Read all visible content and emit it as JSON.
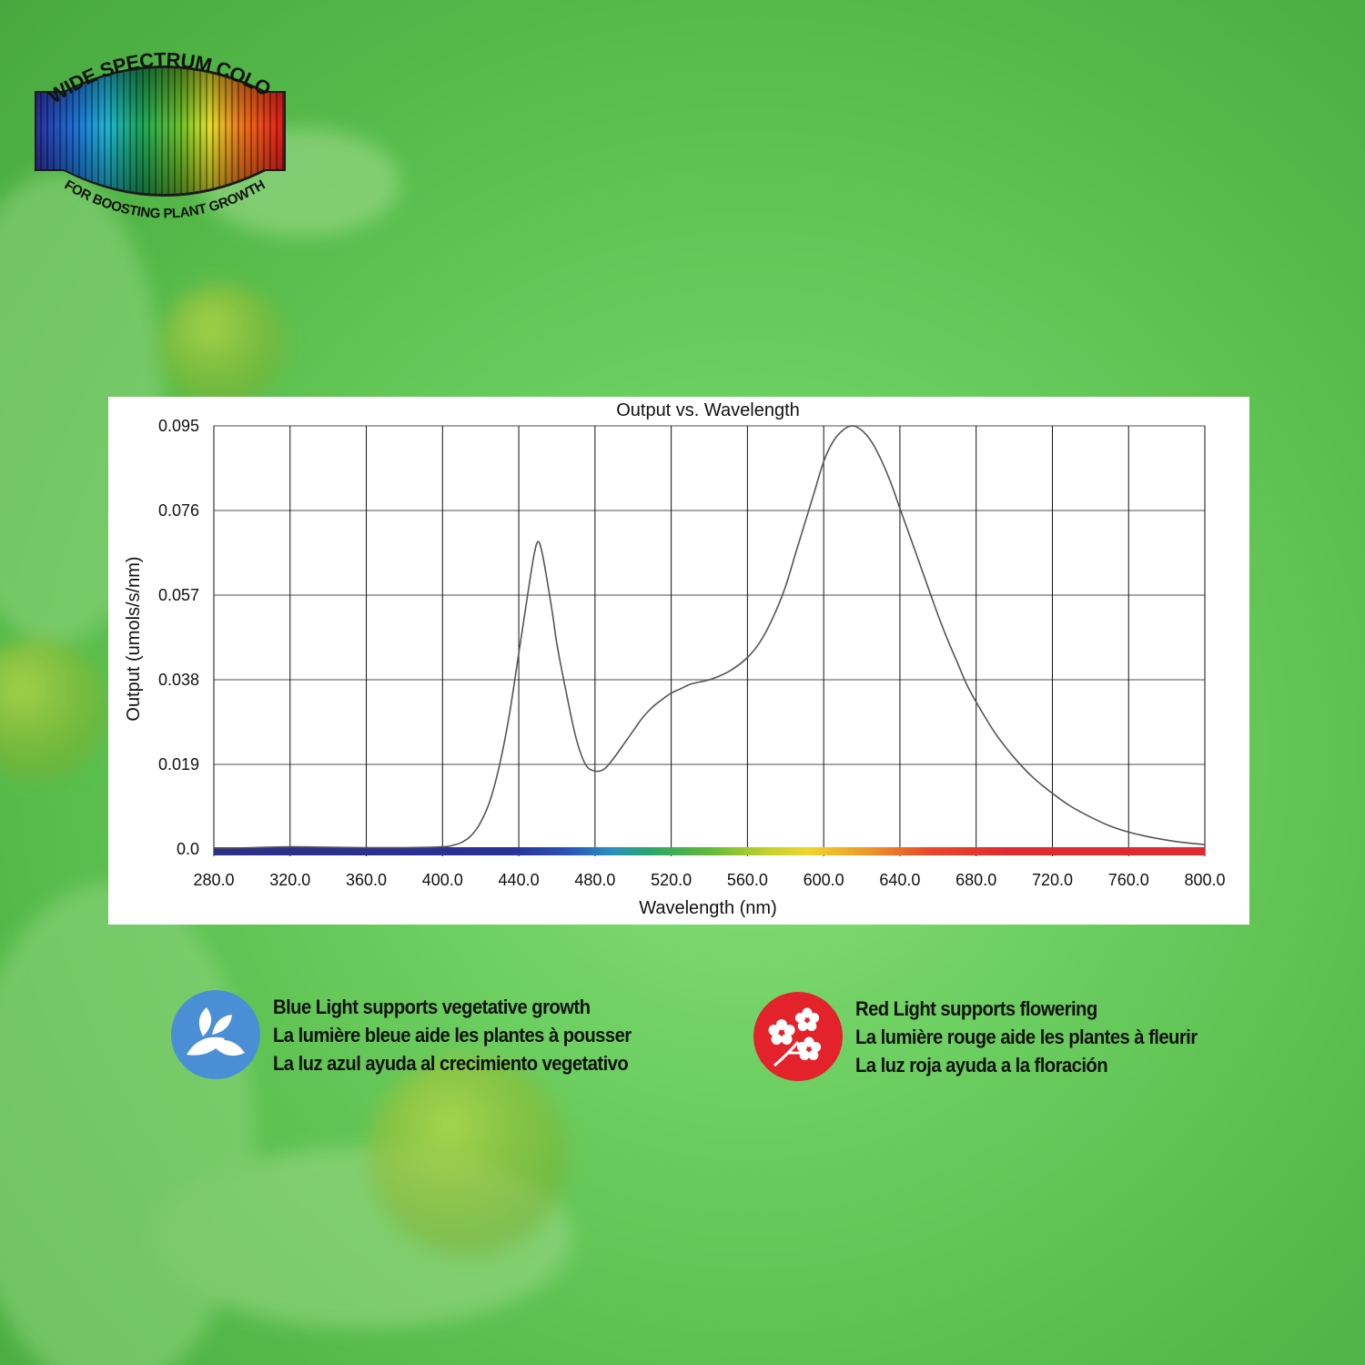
{
  "badge": {
    "top_text": "WIDE SPECTRUM COLOR",
    "bottom_text": "FOR BOOSTING PLANT GROWTH"
  },
  "chart_data": {
    "type": "line",
    "title": "Output vs. Wavelength",
    "xlabel": "Wavelength (nm)",
    "ylabel": "Output (umols/s/nm)",
    "xlim": [
      280,
      800
    ],
    "ylim": [
      0,
      0.095
    ],
    "x_ticks": [
      "280.0",
      "320.0",
      "360.0",
      "400.0",
      "440.0",
      "480.0",
      "520.0",
      "560.0",
      "600.0",
      "640.0",
      "680.0",
      "720.0",
      "760.0",
      "800.0"
    ],
    "y_ticks": [
      "0.0",
      "0.019",
      "0.038",
      "0.057",
      "0.076",
      "0.095"
    ],
    "grid": true,
    "legend": "none",
    "color_bar": "visible spectrum gradient along x-axis",
    "series": [
      {
        "x": [
          280,
          300,
          320,
          340,
          360,
          380,
          400,
          405,
          410,
          415,
          420,
          425,
          430,
          435,
          440,
          445,
          448,
          450,
          452,
          455,
          458,
          460,
          465,
          470,
          475,
          480,
          485,
          490,
          495,
          500,
          505,
          510,
          515,
          520,
          525,
          530,
          535,
          540,
          545,
          550,
          555,
          560,
          565,
          570,
          575,
          580,
          585,
          590,
          595,
          600,
          605,
          610,
          615,
          620,
          625,
          630,
          635,
          640,
          645,
          650,
          655,
          660,
          665,
          670,
          675,
          680,
          690,
          700,
          710,
          720,
          730,
          740,
          750,
          760,
          770,
          780,
          790,
          800
        ],
        "y": [
          0.0002,
          0.0003,
          0.0005,
          0.0004,
          0.0003,
          0.0003,
          0.0005,
          0.0008,
          0.0015,
          0.003,
          0.006,
          0.011,
          0.019,
          0.03,
          0.044,
          0.058,
          0.066,
          0.069,
          0.067,
          0.06,
          0.052,
          0.046,
          0.035,
          0.025,
          0.019,
          0.0175,
          0.018,
          0.0205,
          0.0235,
          0.0265,
          0.0295,
          0.0318,
          0.0335,
          0.035,
          0.036,
          0.037,
          0.0375,
          0.038,
          0.0388,
          0.0398,
          0.0412,
          0.043,
          0.0455,
          0.049,
          0.0535,
          0.059,
          0.066,
          0.073,
          0.08,
          0.087,
          0.0915,
          0.094,
          0.095,
          0.094,
          0.0915,
          0.0875,
          0.0825,
          0.0765,
          0.0705,
          0.0645,
          0.0585,
          0.0525,
          0.047,
          0.042,
          0.037,
          0.033,
          0.026,
          0.0205,
          0.016,
          0.0125,
          0.0095,
          0.0072,
          0.0052,
          0.0038,
          0.0028,
          0.002,
          0.0014,
          0.001
        ]
      }
    ]
  },
  "info": {
    "blue": {
      "icon": "leaf-icon",
      "color": "#4a8fd6",
      "lines": [
        "Blue Light supports vegetative growth",
        "La lumière bleue aide les plantes à pousser",
        "La luz azul ayuda al crecimiento vegetativo"
      ]
    },
    "red": {
      "icon": "flower-icon",
      "color": "#e3222b",
      "lines": [
        "Red Light supports flowering",
        "La lumière rouge aide les plantes à fleurir",
        "La luz roja ayuda a la floración"
      ]
    }
  }
}
